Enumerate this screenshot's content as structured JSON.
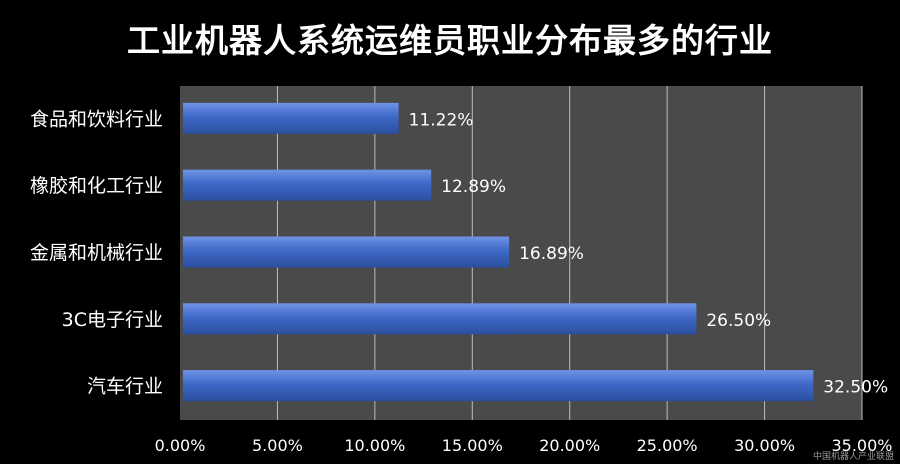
{
  "chart_data": {
    "type": "bar",
    "orientation": "horizontal",
    "title": "工业机器人系统运维员职业分布最多的行业",
    "categories": [
      "食品和饮料行业",
      "橡胶和化工行业",
      "金属和机械行业",
      "3C电子行业",
      "汽车行业"
    ],
    "values": [
      11.22,
      12.89,
      16.89,
      26.5,
      32.5
    ],
    "data_labels": [
      "11.22%",
      "12.89%",
      "16.89%",
      "26.50%",
      "32.50%"
    ],
    "xlim": [
      0,
      35
    ],
    "x_ticks": [
      0,
      5,
      10,
      15,
      20,
      25,
      30,
      35
    ],
    "x_tick_labels": [
      "0.00%",
      "5.00%",
      "10.00%",
      "15.00%",
      "20.00%",
      "25.00%",
      "30.00%",
      "35.00%"
    ],
    "grid": true,
    "colors": {
      "bar": "#3f69c8",
      "plot_background": "#4a4a4a",
      "gridline": "#bdbdbd",
      "text": "#ffffff"
    }
  },
  "watermark": "中国机器人产业联盟"
}
